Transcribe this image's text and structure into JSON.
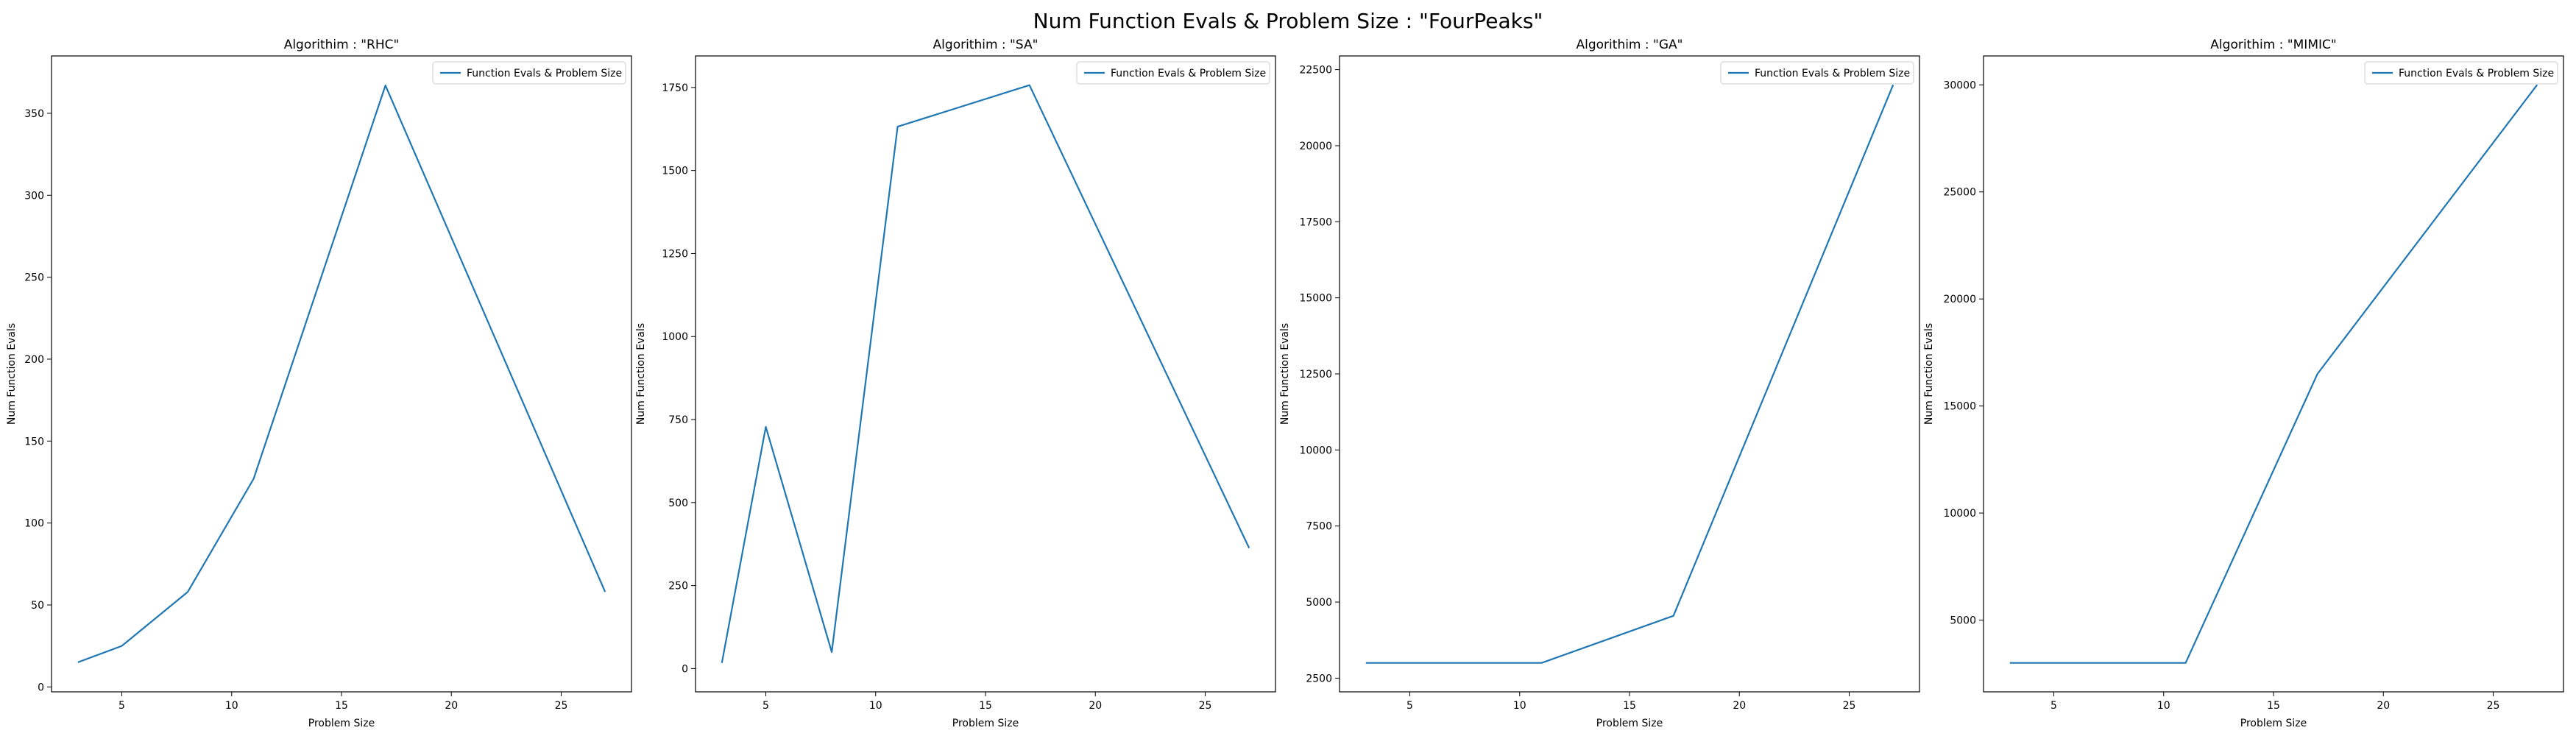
{
  "title": "Num Function Evals & Problem Size : \"FourPeaks\"",
  "series_color": "#1f77b4",
  "chart_data": [
    {
      "type": "line",
      "title": "Algorithim : \"RHC\"",
      "xlabel": "Problem Size",
      "ylabel": "Num Function Evals",
      "x": [
        3,
        5,
        8,
        11,
        17,
        27
      ],
      "series": [
        {
          "name": "Function Evals & Problem Size",
          "values": [
            15,
            25,
            58,
            127,
            367,
            58
          ]
        }
      ],
      "xlim": [
        1.8,
        28.2
      ],
      "ylim": [
        -3,
        385
      ],
      "xticks": [
        5,
        10,
        15,
        20,
        25
      ],
      "yticks": [
        0,
        50,
        100,
        150,
        200,
        250,
        300,
        350
      ],
      "legend": "upper right",
      "grid": false
    },
    {
      "type": "line",
      "title": "Algorithim : \"SA\"",
      "xlabel": "Problem Size",
      "ylabel": "Num Function Evals",
      "x": [
        3,
        5,
        8,
        11,
        17,
        27
      ],
      "series": [
        {
          "name": "Function Evals & Problem Size",
          "values": [
            17,
            728,
            50,
            1632,
            1757,
            363
          ]
        }
      ],
      "xlim": [
        1.8,
        28.2
      ],
      "ylim": [
        -70,
        1845
      ],
      "xticks": [
        5,
        10,
        15,
        20,
        25
      ],
      "yticks": [
        0,
        250,
        500,
        750,
        1000,
        1250,
        1500,
        1750
      ],
      "legend": "upper right",
      "grid": false
    },
    {
      "type": "line",
      "title": "Algorithim : \"GA\"",
      "xlabel": "Problem Size",
      "ylabel": "Num Function Evals",
      "x": [
        3,
        5,
        8,
        11,
        17,
        27
      ],
      "series": [
        {
          "name": "Function Evals & Problem Size",
          "values": [
            3000,
            3000,
            3000,
            3000,
            4550,
            22000
          ]
        }
      ],
      "xlim": [
        1.8,
        28.2
      ],
      "ylim": [
        2050,
        22950
      ],
      "xticks": [
        5,
        10,
        15,
        20,
        25
      ],
      "yticks": [
        2500,
        5000,
        7500,
        10000,
        12500,
        15000,
        17500,
        20000,
        22500
      ],
      "legend": "upper right",
      "grid": false
    },
    {
      "type": "line",
      "title": "Algorithim : \"MIMIC\"",
      "xlabel": "Problem Size",
      "ylabel": "Num Function Evals",
      "x": [
        3,
        5,
        8,
        11,
        17,
        27
      ],
      "series": [
        {
          "name": "Function Evals & Problem Size",
          "values": [
            3000,
            3000,
            3000,
            3000,
            16500,
            30000
          ]
        }
      ],
      "xlim": [
        1.8,
        28.2
      ],
      "ylim": [
        1650,
        31350
      ],
      "xticks": [
        5,
        10,
        15,
        20,
        25
      ],
      "yticks": [
        5000,
        10000,
        15000,
        20000,
        25000,
        30000
      ],
      "legend": "upper right",
      "grid": false
    }
  ]
}
